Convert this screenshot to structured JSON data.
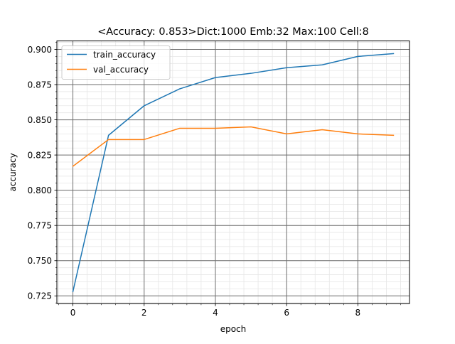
{
  "chart_data": {
    "type": "line",
    "title": "<Accuracy: 0.853>Dict:1000 Emb:32 Max:100 Cell:8",
    "xlabel": "epoch",
    "ylabel": "accuracy",
    "xlim": [
      -0.45,
      9.45
    ],
    "ylim": [
      0.7195,
      0.906
    ],
    "x_ticks": [
      0,
      2,
      4,
      6,
      8
    ],
    "x_tick_labels": [
      "0",
      "2",
      "4",
      "6",
      "8"
    ],
    "x_minor_step": 0.4,
    "y_ticks": [
      0.725,
      0.75,
      0.775,
      0.8,
      0.825,
      0.85,
      0.875,
      0.9
    ],
    "y_tick_labels": [
      "0.725",
      "0.750",
      "0.775",
      "0.800",
      "0.825",
      "0.850",
      "0.875",
      "0.900"
    ],
    "y_minor_step": 0.005,
    "grid": true,
    "legend_position": "top-left",
    "x": [
      0,
      1,
      2,
      3,
      4,
      5,
      6,
      7,
      8,
      9
    ],
    "series": [
      {
        "name": "train_accuracy",
        "color": "#1f77b4",
        "values": [
          0.728,
          0.839,
          0.86,
          0.872,
          0.88,
          0.883,
          0.887,
          0.889,
          0.895,
          0.897
        ]
      },
      {
        "name": "val_accuracy",
        "color": "#ff7f0e",
        "values": [
          0.817,
          0.836,
          0.836,
          0.844,
          0.844,
          0.845,
          0.84,
          0.843,
          0.84,
          0.839
        ]
      }
    ]
  }
}
